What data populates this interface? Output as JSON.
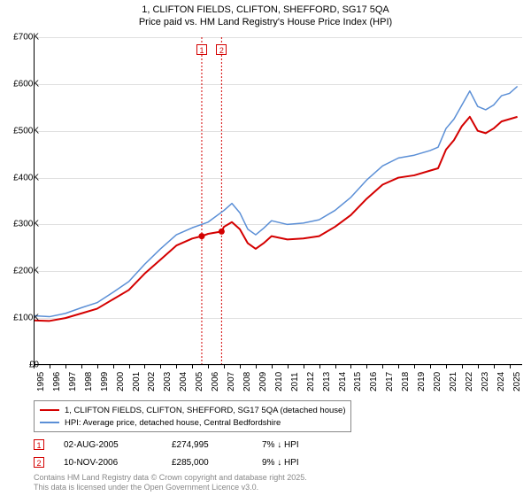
{
  "title_line1": "1, CLIFTON FIELDS, CLIFTON, SHEFFORD, SG17 5QA",
  "title_line2": "Price paid vs. HM Land Registry's House Price Index (HPI)",
  "chart": {
    "type": "line",
    "background_color": "#ffffff",
    "grid_color": "#e0e0e0",
    "axis_color": "#000000",
    "xlim": [
      1995,
      2025.8
    ],
    "ylim": [
      0,
      700000
    ],
    "ytick_step": 100000,
    "yticks": [
      "£0",
      "£100K",
      "£200K",
      "£300K",
      "£400K",
      "£500K",
      "£600K",
      "£700K"
    ],
    "xticks": [
      1995,
      1996,
      1997,
      1998,
      1999,
      2000,
      2001,
      2002,
      2003,
      2004,
      2005,
      2006,
      2007,
      2008,
      2009,
      2010,
      2011,
      2012,
      2013,
      2014,
      2015,
      2016,
      2017,
      2018,
      2019,
      2020,
      2021,
      2022,
      2023,
      2024,
      2025
    ],
    "series": [
      {
        "name": "1, CLIFTON FIELDS, CLIFTON, SHEFFORD, SG17 5QA (detached house)",
        "color": "#d40000",
        "width": 2,
        "data": [
          [
            1995,
            95000
          ],
          [
            1996,
            94000
          ],
          [
            1997,
            100000
          ],
          [
            1998,
            110000
          ],
          [
            1999,
            120000
          ],
          [
            2000,
            140000
          ],
          [
            2001,
            160000
          ],
          [
            2002,
            195000
          ],
          [
            2003,
            225000
          ],
          [
            2004,
            255000
          ],
          [
            2005,
            270000
          ],
          [
            2005.6,
            274995
          ],
          [
            2006,
            280000
          ],
          [
            2006.85,
            285000
          ],
          [
            2007,
            295000
          ],
          [
            2007.5,
            305000
          ],
          [
            2008,
            290000
          ],
          [
            2008.5,
            260000
          ],
          [
            2009,
            248000
          ],
          [
            2009.5,
            260000
          ],
          [
            2010,
            275000
          ],
          [
            2011,
            268000
          ],
          [
            2012,
            270000
          ],
          [
            2013,
            275000
          ],
          [
            2014,
            295000
          ],
          [
            2015,
            320000
          ],
          [
            2016,
            355000
          ],
          [
            2017,
            385000
          ],
          [
            2018,
            400000
          ],
          [
            2019,
            405000
          ],
          [
            2020,
            415000
          ],
          [
            2020.5,
            420000
          ],
          [
            2021,
            460000
          ],
          [
            2021.5,
            480000
          ],
          [
            2022,
            510000
          ],
          [
            2022.5,
            530000
          ],
          [
            2023,
            500000
          ],
          [
            2023.5,
            495000
          ],
          [
            2024,
            505000
          ],
          [
            2024.5,
            520000
          ],
          [
            2025,
            525000
          ],
          [
            2025.5,
            530000
          ]
        ]
      },
      {
        "name": "HPI: Average price, detached house, Central Bedfordshire",
        "color": "#5b8fd6",
        "width": 1.5,
        "data": [
          [
            1995,
            105000
          ],
          [
            1996,
            103000
          ],
          [
            1997,
            110000
          ],
          [
            1998,
            122000
          ],
          [
            1999,
            133000
          ],
          [
            2000,
            155000
          ],
          [
            2001,
            178000
          ],
          [
            2002,
            215000
          ],
          [
            2003,
            248000
          ],
          [
            2004,
            278000
          ],
          [
            2005,
            293000
          ],
          [
            2006,
            305000
          ],
          [
            2007,
            330000
          ],
          [
            2007.5,
            345000
          ],
          [
            2008,
            325000
          ],
          [
            2008.5,
            290000
          ],
          [
            2009,
            278000
          ],
          [
            2009.5,
            292000
          ],
          [
            2010,
            308000
          ],
          [
            2011,
            300000
          ],
          [
            2012,
            303000
          ],
          [
            2013,
            310000
          ],
          [
            2014,
            330000
          ],
          [
            2015,
            358000
          ],
          [
            2016,
            395000
          ],
          [
            2017,
            425000
          ],
          [
            2018,
            442000
          ],
          [
            2019,
            448000
          ],
          [
            2020,
            458000
          ],
          [
            2020.5,
            465000
          ],
          [
            2021,
            505000
          ],
          [
            2021.5,
            525000
          ],
          [
            2022,
            555000
          ],
          [
            2022.5,
            585000
          ],
          [
            2023,
            552000
          ],
          [
            2023.5,
            545000
          ],
          [
            2024,
            555000
          ],
          [
            2024.5,
            575000
          ],
          [
            2025,
            580000
          ],
          [
            2025.5,
            595000
          ]
        ]
      }
    ],
    "sale_markers": [
      {
        "n": "1",
        "x": 2005.6,
        "color": "#d40000"
      },
      {
        "n": "2",
        "x": 2006.85,
        "color": "#d40000"
      }
    ],
    "sale_points": [
      {
        "x": 2005.6,
        "y": 274995,
        "color": "#d40000"
      },
      {
        "x": 2006.85,
        "y": 285000,
        "color": "#d40000"
      }
    ]
  },
  "legend": {
    "items": [
      {
        "color": "#d40000",
        "width": 2,
        "label": "1, CLIFTON FIELDS, CLIFTON, SHEFFORD, SG17 5QA (detached house)"
      },
      {
        "color": "#5b8fd6",
        "width": 1.5,
        "label": "HPI: Average price, detached house, Central Bedfordshire"
      }
    ]
  },
  "sales": [
    {
      "n": "1",
      "color": "#d40000",
      "date": "02-AUG-2005",
      "price": "£274,995",
      "diff": "7% ↓ HPI"
    },
    {
      "n": "2",
      "color": "#d40000",
      "date": "10-NOV-2006",
      "price": "£285,000",
      "diff": "9% ↓ HPI"
    }
  ],
  "footer_line1": "Contains HM Land Registry data © Crown copyright and database right 2025.",
  "footer_line2": "This data is licensed under the Open Government Licence v3.0."
}
